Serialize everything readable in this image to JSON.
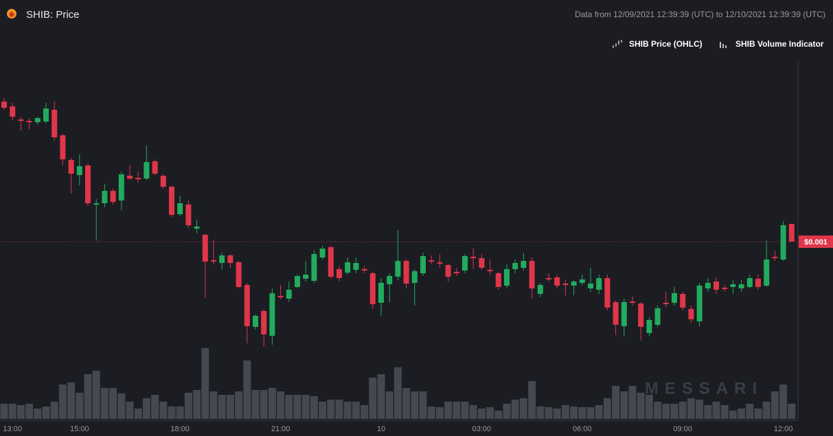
{
  "chart_data": {
    "type": "candlestick",
    "title": "SHIB: Price",
    "subtitle": "Data from 12/09/2021 12:39:39 (UTC) to 12/10/2021 12:39:39 (UTC)",
    "legend": [
      "SHIB Price (OHLC)",
      "SHIB Volume Indicator"
    ],
    "watermark": "MESSARI",
    "up_color": "#22ab5e",
    "down_color": "#e0364a",
    "ylim": [
      0.0008,
      0.00126
    ],
    "last_price": 0.001,
    "last_price_label": "$0.001",
    "categories": [
      null,
      "13:00",
      null,
      null,
      null,
      null,
      null,
      null,
      null,
      "15:00",
      null,
      null,
      null,
      null,
      null,
      null,
      null,
      null,
      null,
      null,
      null,
      "18:00",
      null,
      null,
      null,
      null,
      null,
      null,
      null,
      null,
      null,
      null,
      null,
      "21:00",
      null,
      null,
      null,
      null,
      null,
      null,
      null,
      null,
      null,
      null,
      null,
      "10",
      null,
      null,
      null,
      null,
      null,
      null,
      null,
      null,
      null,
      null,
      null,
      "03:00",
      null,
      null,
      null,
      null,
      null,
      null,
      null,
      null,
      null,
      null,
      null,
      "06:00",
      null,
      null,
      null,
      null,
      null,
      null,
      null,
      null,
      null,
      null,
      null,
      "09:00",
      null,
      null,
      null,
      null,
      null,
      null,
      null,
      null,
      null,
      null,
      null,
      "12:00",
      null
    ],
    "open": [
      0.001204,
      0.001197,
      0.001178,
      0.001176,
      0.001174,
      0.001175,
      0.001192,
      0.001155,
      0.001119,
      0.001097,
      0.001111,
      0.001054,
      0.001056,
      0.001074,
      0.00106,
      0.001096,
      0.001093,
      0.001092,
      0.001117,
      0.001096,
      0.00108,
      0.00104,
      0.001054,
      0.001019,
      0.00101,
      0.000973,
      0.000969,
      0.00098,
      0.00097,
      0.000937,
      0.000876,
      0.000899,
      0.000863,
      0.000921,
      0.000917,
      0.000934,
      0.000946,
      0.000943,
      0.000977,
      0.000992,
      0.00096,
      0.000955,
      0.000959,
      0.00096,
      0.000954,
      0.000911,
      0.000938,
      0.000949,
      0.000972,
      0.00094,
      0.000954,
      0.000973,
      0.00097,
      0.000966,
      0.000956,
      0.000958,
      0.000978,
      0.000976,
      0.000959,
      0.000954,
      0.000936,
      0.00096,
      0.000962,
      0.000972,
      0.000924,
      0.000947,
      0.000948,
      0.000939,
      0.000936,
      0.00094,
      0.000932,
      0.00093,
      0.000947,
      0.000912,
      0.000877,
      0.000913,
      0.00091,
      0.000867,
      0.000879,
      0.000911,
      0.000911,
      0.000924,
      0.000902,
      0.000884,
      0.000932,
      0.000942,
      0.000933,
      0.000934,
      0.000932,
      0.000934,
      0.000946,
      0.000936,
      0.000978,
      0.000974,
      0.001026
    ],
    "high": [
      0.001209,
      0.001202,
      0.001182,
      0.00118,
      0.001182,
      0.001202,
      0.001204,
      0.001157,
      0.001122,
      0.001127,
      0.001114,
      0.001062,
      0.001084,
      0.001077,
      0.001102,
      0.001112,
      0.001102,
      0.00114,
      0.00112,
      0.001098,
      0.001082,
      0.001067,
      0.00106,
      0.001032,
      0.001012,
      0.001002,
      0.000984,
      0.000982,
      0.000972,
      0.00094,
      0.000894,
      0.000902,
      0.000932,
      0.000937,
      0.000942,
      0.000952,
      0.000972,
      0.000987,
      0.000994,
      0.000994,
      0.000964,
      0.000977,
      0.000977,
      0.000964,
      0.000956,
      0.000947,
      0.000954,
      0.001017,
      0.000974,
      0.00096,
      0.000984,
      0.00098,
      0.000982,
      0.000968,
      0.000962,
      0.000982,
      0.00099,
      0.000982,
      0.000974,
      0.000956,
      0.000967,
      0.000974,
      0.000984,
      0.000977,
      0.00094,
      0.000954,
      0.000952,
      0.000944,
      0.000944,
      0.000952,
      0.000962,
      0.000952,
      0.000952,
      0.000914,
      0.000917,
      0.00092,
      0.000912,
      0.00089,
      0.000907,
      0.000927,
      0.000934,
      0.000927,
      0.000907,
      0.00094,
      0.000947,
      0.000948,
      0.000937,
      0.000944,
      0.000944,
      0.000952,
      0.000952,
      0.001002,
      0.000987,
      0.00103,
      0.001026
    ],
    "low": [
      0.001192,
      0.001177,
      0.001162,
      0.001164,
      0.001171,
      0.001172,
      0.001147,
      0.001112,
      0.00107,
      0.001082,
      0.001052,
      0.001002,
      0.00105,
      0.001054,
      0.001046,
      0.00109,
      0.001086,
      0.00109,
      0.001097,
      0.001077,
      0.001036,
      0.001037,
      0.00102,
      0.001012,
      0.000918,
      0.000967,
      0.000959,
      0.000962,
      0.000932,
      0.000852,
      0.000872,
      0.000847,
      0.00085,
      0.000916,
      0.000912,
      0.000932,
      0.000942,
      0.00094,
      0.000974,
      0.000946,
      0.000942,
      0.000952,
      0.000954,
      0.000954,
      0.000902,
      0.000892,
      0.000912,
      0.000944,
      0.000932,
      0.000907,
      0.00095,
      0.000967,
      0.000962,
      0.000942,
      0.00095,
      0.000954,
      0.00096,
      0.000959,
      0.000952,
      0.00093,
      0.000932,
      0.000954,
      0.000958,
      0.000917,
      0.000919,
      0.000942,
      0.000932,
      0.000922,
      0.000922,
      0.000937,
      0.000927,
      0.000924,
      0.0009,
      0.000864,
      0.000862,
      0.000907,
      0.000856,
      0.000862,
      0.000876,
      0.000904,
      0.000907,
      0.0009,
      0.000882,
      0.000877,
      0.000927,
      0.000924,
      0.000927,
      0.000924,
      0.000927,
      0.000932,
      0.00093,
      0.000934,
      0.000972,
      0.000972,
      0.001
    ],
    "close": [
      0.001195,
      0.001182,
      0.001176,
      0.001174,
      0.00118,
      0.001194,
      0.001152,
      0.00112,
      0.001099,
      0.00111,
      0.001056,
      0.001056,
      0.001074,
      0.001058,
      0.001098,
      0.001092,
      0.001091,
      0.001116,
      0.001099,
      0.00108,
      0.001039,
      0.001056,
      0.001024,
      0.001022,
      0.000971,
      0.000971,
      0.00098,
      0.000969,
      0.000934,
      0.000877,
      0.000892,
      0.000865,
      0.000925,
      0.000919,
      0.00093,
      0.00095,
      0.000952,
      0.000982,
      0.00099,
      0.000949,
      0.000947,
      0.00097,
      0.000969,
      0.000958,
      0.000909,
      0.00094,
      0.00095,
      0.000972,
      0.000939,
      0.000957,
      0.000979,
      0.000971,
      0.000968,
      0.000949,
      0.000954,
      0.000979,
      0.000976,
      0.000962,
      0.000957,
      0.000934,
      0.00096,
      0.000969,
      0.000972,
      0.000932,
      0.000937,
      0.000945,
      0.000936,
      0.000937,
      0.000942,
      0.000945,
      0.000939,
      0.000947,
      0.000904,
      0.000879,
      0.000912,
      0.000911,
      0.000876,
      0.000886,
      0.000903,
      0.000909,
      0.000925,
      0.000904,
      0.000887,
      0.000936,
      0.00094,
      0.00093,
      0.000931,
      0.000938,
      0.000938,
      0.000947,
      0.000934,
      0.000974,
      0.000976,
      0.001024,
      0.001
    ],
    "volume": {
      "color": "#434851",
      "ylim": [
        0,
        120
      ],
      "values": [
        22,
        22,
        20,
        22,
        15,
        18,
        25,
        50,
        53,
        38,
        65,
        70,
        45,
        45,
        37,
        25,
        15,
        30,
        35,
        25,
        18,
        18,
        38,
        42,
        103,
        40,
        35,
        35,
        40,
        85,
        42,
        42,
        45,
        40,
        35,
        35,
        35,
        33,
        25,
        28,
        28,
        25,
        25,
        20,
        60,
        65,
        40,
        75,
        45,
        40,
        40,
        18,
        17,
        25,
        25,
        25,
        20,
        15,
        17,
        12,
        22,
        28,
        30,
        55,
        18,
        17,
        15,
        20,
        18,
        17,
        17,
        20,
        30,
        48,
        40,
        48,
        38,
        35,
        25,
        22,
        22,
        25,
        30,
        28,
        20,
        25,
        20,
        12,
        15,
        22,
        15,
        25,
        40,
        50,
        22
      ]
    }
  }
}
